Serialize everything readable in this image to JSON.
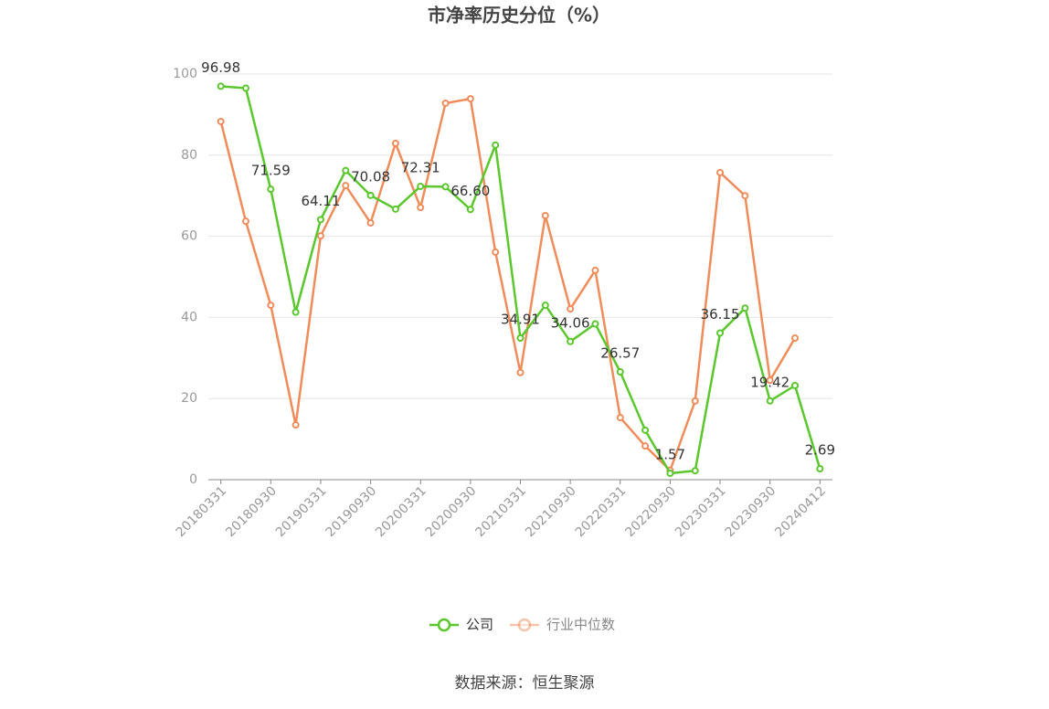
{
  "chart_data": {
    "type": "line",
    "title": "市净率历史分位（%）",
    "categories": [
      "20180331",
      null,
      "20180930",
      null,
      "20190331",
      null,
      "20190930",
      null,
      "20200331",
      null,
      "20200930",
      null,
      "20210331",
      null,
      "20210930",
      null,
      "20220331",
      null,
      "20220930",
      null,
      "20230331",
      null,
      "20230930",
      null,
      "20240412"
    ],
    "series": [
      {
        "name": "公司",
        "color": "#5ac72d",
        "values": [
          96.98,
          96.5,
          71.59,
          41.3,
          64.11,
          76.2,
          70.08,
          66.7,
          72.31,
          72.2,
          66.6,
          82.5,
          34.91,
          43.0,
          34.06,
          38.4,
          26.57,
          12.2,
          1.57,
          2.2,
          36.15,
          42.3,
          19.42,
          23.2,
          2.69
        ],
        "value_labels": [
          "96.98",
          null,
          "71.59",
          null,
          "64.11",
          null,
          "70.08",
          null,
          "72.31",
          null,
          "66.60",
          null,
          "34.91",
          null,
          "34.06",
          null,
          "26.57",
          null,
          "1.57",
          null,
          "36.15",
          null,
          "19.42",
          null,
          "2.69"
        ]
      },
      {
        "name": "行业中位数",
        "color": "#f08c5a",
        "values": [
          88.3,
          63.7,
          43.0,
          13.5,
          60.1,
          72.5,
          63.3,
          82.9,
          67.1,
          92.8,
          93.9,
          56.1,
          26.4,
          65.1,
          42.1,
          51.6,
          15.3,
          8.3,
          2.3,
          19.4,
          75.7,
          70.0,
          24.5,
          34.9,
          null
        ]
      }
    ],
    "ylim": [
      0,
      100
    ],
    "yticks": [
      0,
      20,
      40,
      60,
      80,
      100
    ],
    "grid": true,
    "legend": "bottom",
    "source": "数据来源：恒生聚源"
  }
}
